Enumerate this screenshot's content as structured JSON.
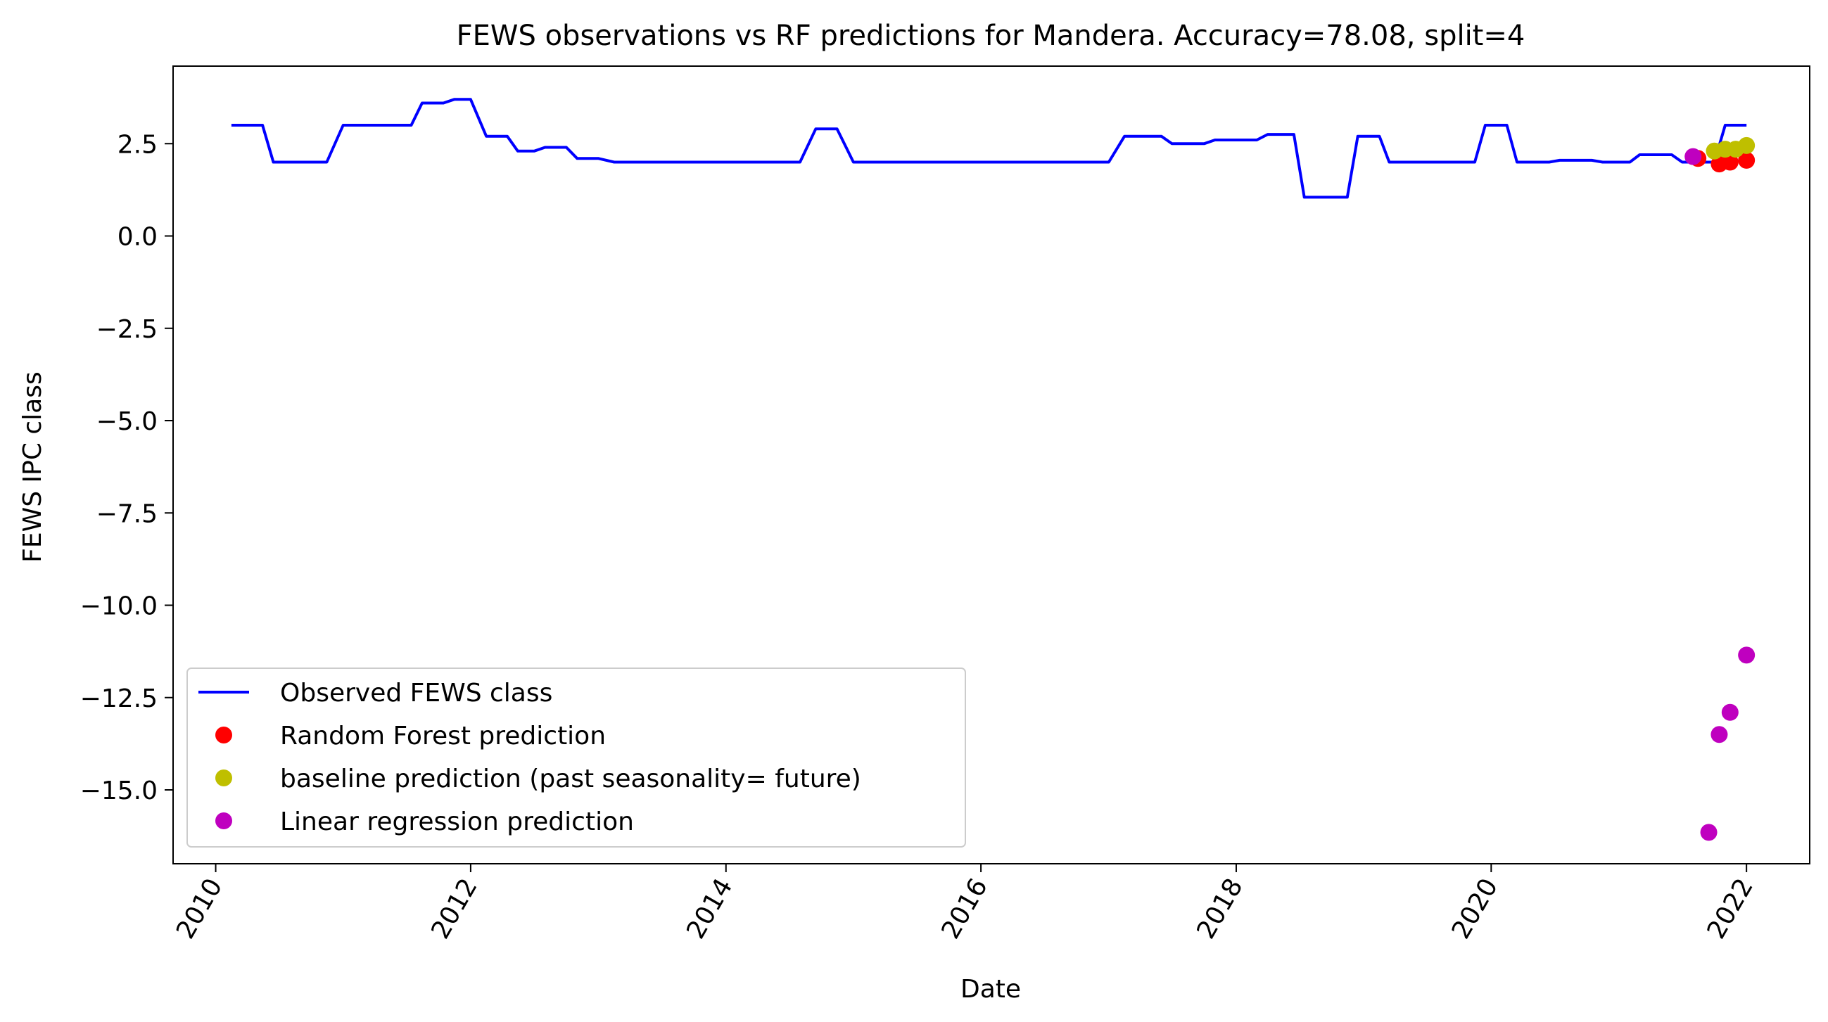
{
  "chart_data": {
    "type": "line",
    "title": "FEWS observations vs RF predictions for Mandera. Accuracy=78.08, split=4",
    "xlabel": "Date",
    "ylabel": "FEWS IPC class",
    "xlim": [
      "2009-09-01",
      "2022-07-01"
    ],
    "ylim": [
      -17.0,
      4.6
    ],
    "x_ticks": [
      "2010",
      "2012",
      "2014",
      "2016",
      "2018",
      "2020",
      "2022"
    ],
    "y_ticks": [
      "2.5",
      "0.0",
      "−2.5",
      "−5.0",
      "−7.5",
      "−10.0",
      "−12.5",
      "−15.0"
    ],
    "y_tick_values": [
      2.5,
      0.0,
      -2.5,
      -5.0,
      -7.5,
      -10.0,
      -12.5,
      -15.0
    ],
    "grid": false,
    "legend_position": "lower-left",
    "colors": {
      "observed": "#0000ff",
      "random_forest": "#ff0000",
      "baseline": "#bfbf00",
      "linear_regression": "#bf00bf"
    },
    "series": [
      {
        "name": "Observed FEWS class",
        "kind": "line",
        "color_key": "observed",
        "points": [
          [
            "2010-02-15",
            3.0
          ],
          [
            "2010-05-15",
            3.0
          ],
          [
            "2010-06-15",
            2.0
          ],
          [
            "2010-11-15",
            2.0
          ],
          [
            "2011-01-01",
            3.0
          ],
          [
            "2011-07-15",
            3.0
          ],
          [
            "2011-08-15",
            3.6
          ],
          [
            "2011-10-15",
            3.6
          ],
          [
            "2011-11-15",
            3.7
          ],
          [
            "2012-01-01",
            3.7
          ],
          [
            "2012-02-15",
            2.7
          ],
          [
            "2012-04-15",
            2.7
          ],
          [
            "2012-05-15",
            2.3
          ],
          [
            "2012-07-01",
            2.3
          ],
          [
            "2012-08-01",
            2.4
          ],
          [
            "2012-10-01",
            2.4
          ],
          [
            "2012-11-01",
            2.1
          ],
          [
            "2013-01-01",
            2.1
          ],
          [
            "2013-02-15",
            2.0
          ],
          [
            "2014-08-01",
            2.0
          ],
          [
            "2014-09-15",
            2.9
          ],
          [
            "2014-11-15",
            2.9
          ],
          [
            "2015-01-01",
            2.0
          ],
          [
            "2016-08-01",
            2.0
          ],
          [
            "2017-01-01",
            2.0
          ],
          [
            "2017-02-15",
            2.7
          ],
          [
            "2017-06-01",
            2.7
          ],
          [
            "2017-07-01",
            2.5
          ],
          [
            "2017-10-01",
            2.5
          ],
          [
            "2017-11-01",
            2.6
          ],
          [
            "2018-03-01",
            2.6
          ],
          [
            "2018-04-01",
            2.75
          ],
          [
            "2018-06-15",
            2.75
          ],
          [
            "2018-07-15",
            1.05
          ],
          [
            "2018-11-15",
            1.05
          ],
          [
            "2018-12-15",
            2.7
          ],
          [
            "2019-02-15",
            2.7
          ],
          [
            "2019-03-15",
            2.0
          ],
          [
            "2019-11-15",
            2.0
          ],
          [
            "2019-12-15",
            3.0
          ],
          [
            "2020-02-15",
            3.0
          ],
          [
            "2020-03-15",
            2.0
          ],
          [
            "2020-06-15",
            2.0
          ],
          [
            "2020-07-15",
            2.05
          ],
          [
            "2020-10-15",
            2.05
          ],
          [
            "2020-11-15",
            2.0
          ],
          [
            "2021-02-01",
            2.0
          ],
          [
            "2021-03-01",
            2.2
          ],
          [
            "2021-06-01",
            2.2
          ],
          [
            "2021-07-01",
            2.0
          ],
          [
            "2021-10-01",
            2.0
          ],
          [
            "2021-11-01",
            3.0
          ],
          [
            "2022-01-01",
            3.0
          ]
        ]
      },
      {
        "name": "Random Forest prediction",
        "kind": "scatter",
        "color_key": "random_forest",
        "points": [
          [
            "2021-08-15",
            2.1
          ],
          [
            "2021-10-15",
            1.95
          ],
          [
            "2021-11-15",
            2.0
          ],
          [
            "2022-01-01",
            2.05
          ]
        ]
      },
      {
        "name": "baseline prediction (past seasonality= future)",
        "kind": "scatter",
        "color_key": "baseline",
        "points": [
          [
            "2021-10-01",
            2.3
          ],
          [
            "2021-11-01",
            2.35
          ],
          [
            "2021-12-01",
            2.35
          ],
          [
            "2022-01-01",
            2.45
          ]
        ]
      },
      {
        "name": "Linear regression prediction",
        "kind": "scatter",
        "color_key": "linear_regression",
        "points": [
          [
            "2021-08-01",
            2.15
          ],
          [
            "2021-09-15",
            -16.15
          ],
          [
            "2021-10-15",
            -13.5
          ],
          [
            "2021-11-15",
            -12.9
          ],
          [
            "2022-01-01",
            -11.35
          ]
        ]
      }
    ]
  }
}
